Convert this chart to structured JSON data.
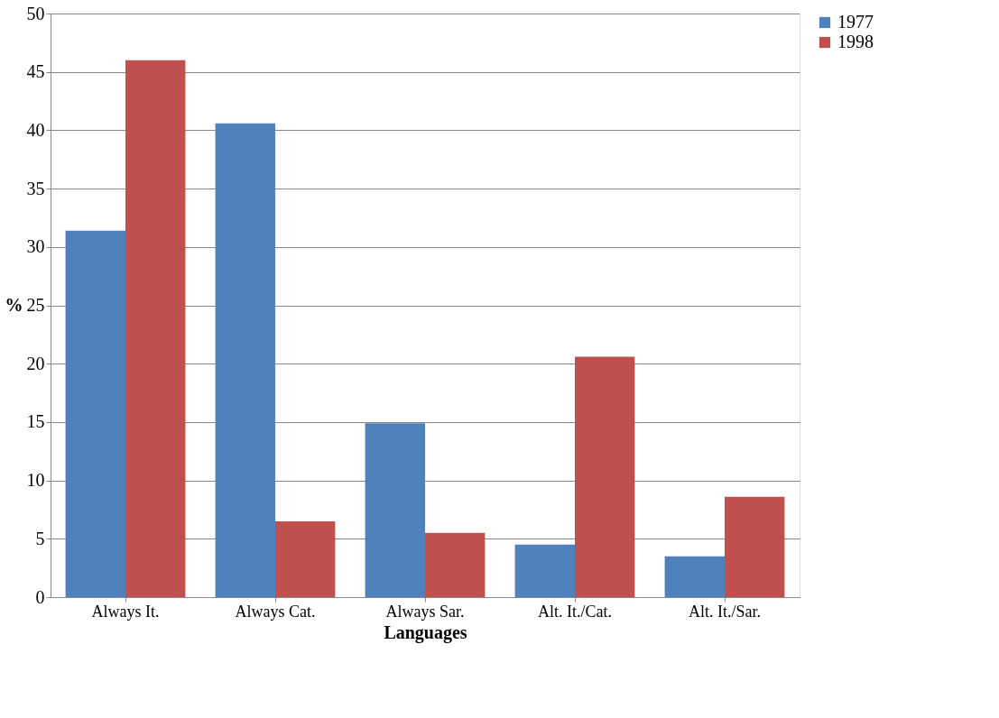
{
  "chart_data": {
    "type": "bar",
    "xlabel": "Languages",
    "ylabel": "%",
    "categories": [
      "Always It.",
      "Always Cat.",
      "Always Sar.",
      "Alt. It./Cat.",
      "Alt. It./Sar."
    ],
    "series": [
      {
        "name": "1977",
        "color": "#4f81bd",
        "values": [
          31.4,
          40.6,
          14.9,
          4.5,
          3.5
        ]
      },
      {
        "name": "1998",
        "color": "#c0504d",
        "values": [
          46.0,
          6.5,
          5.5,
          20.6,
          8.6
        ]
      }
    ],
    "ylim": [
      0,
      50
    ],
    "yticks": [
      0,
      5,
      10,
      15,
      20,
      25,
      30,
      35,
      40,
      45,
      50
    ],
    "grid": "y",
    "legend": "right"
  }
}
